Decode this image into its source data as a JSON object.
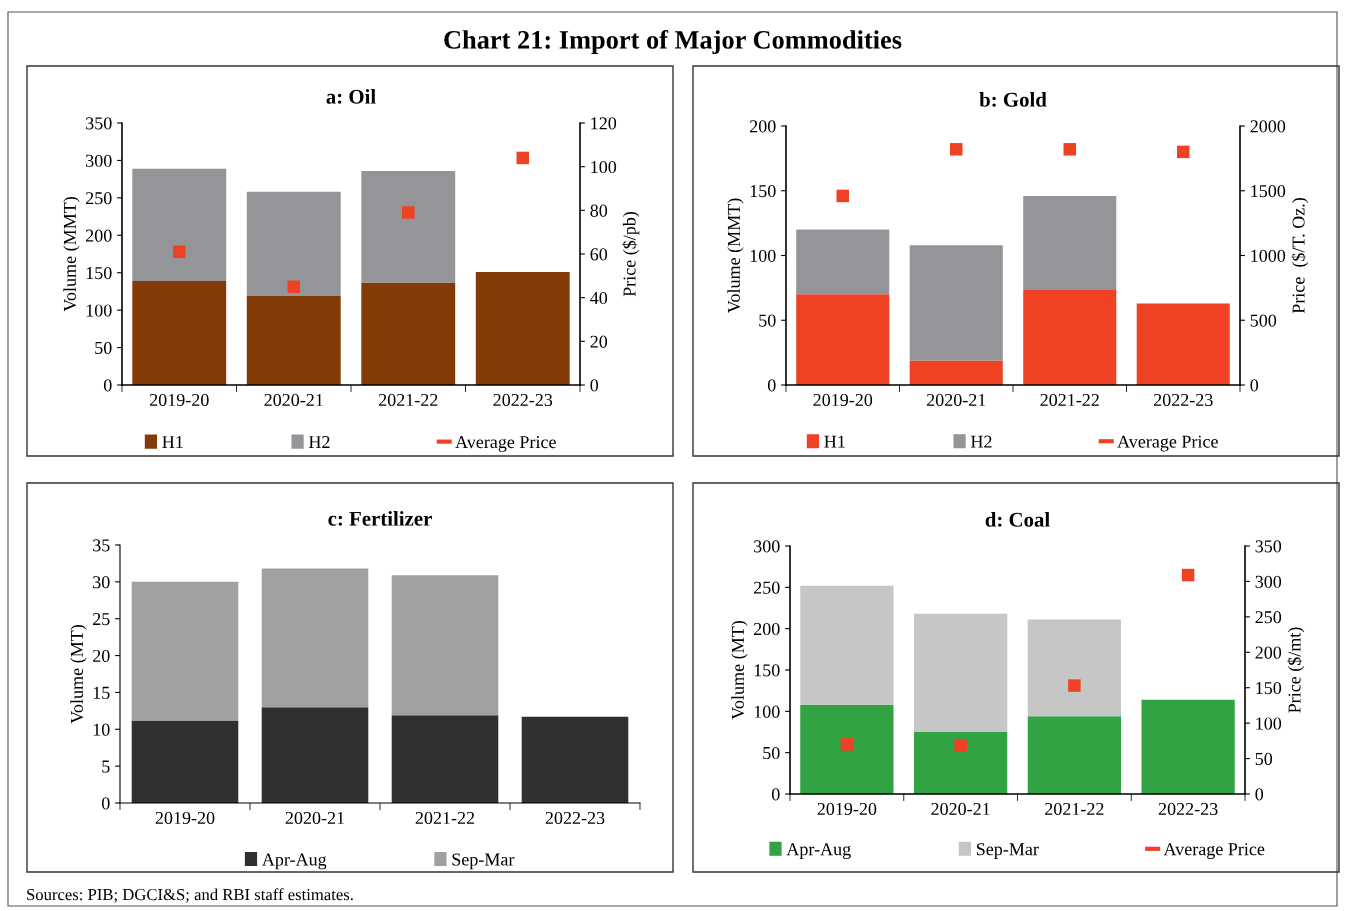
{
  "chart_data": [
    {
      "type": "other",
      "title": "Chart 21: Import of Major Commodities",
      "annotations": [
        "Sources: PIB; DGCI&S; and RBI staff estimates."
      ]
    },
    {
      "type": "bar",
      "title": "a: Oil",
      "categories": [
        "2019-20",
        "2020-21",
        "2021-22",
        "2022-23"
      ],
      "stacked": true,
      "legend": "bottom",
      "grid": false,
      "ylabel": "Volume (MMT)",
      "ylim": [
        0,
        350
      ],
      "yticks": [
        0,
        50,
        100,
        150,
        200,
        250,
        300,
        350
      ],
      "y2label": "Price ($/pb)",
      "y2lim": [
        0,
        120
      ],
      "y2ticks": [
        0,
        20,
        40,
        60,
        80,
        100,
        120
      ],
      "series": [
        {
          "name": "H1",
          "color": "#843a06",
          "values": [
            139,
            119,
            137,
            151
          ]
        },
        {
          "name": "H2",
          "color": "#939598",
          "values": [
            150,
            139,
            149,
            null
          ]
        },
        {
          "name": "Average Price",
          "type": "scatter",
          "marker": "square",
          "axis": "y2",
          "color": "#ef4123",
          "values": [
            61,
            45,
            79,
            104
          ]
        }
      ]
    },
    {
      "type": "bar",
      "title": "b: Gold",
      "categories": [
        "2019-20",
        "2020-21",
        "2021-22",
        "2022-23"
      ],
      "stacked": true,
      "legend": "bottom",
      "grid": false,
      "ylabel": "Volume (MMT)",
      "ylim": [
        0,
        200
      ],
      "yticks": [
        0,
        50,
        100,
        150,
        200
      ],
      "y2label": "Price  ($/T. Oz.)",
      "y2lim": [
        0,
        2000
      ],
      "y2ticks": [
        0,
        500,
        1000,
        1500,
        2000
      ],
      "series": [
        {
          "name": "H1",
          "color": "#ef4123",
          "values": [
            70,
            19,
            74,
            63
          ]
        },
        {
          "name": "H2",
          "color": "#939598",
          "values": [
            50,
            89,
            72,
            null
          ]
        },
        {
          "name": "Average Price",
          "type": "scatter",
          "marker": "square",
          "axis": "y2",
          "color": "#ef4123",
          "values": [
            1460,
            1820,
            1820,
            1800
          ]
        }
      ]
    },
    {
      "type": "bar",
      "title": "c: Fertilizer",
      "categories": [
        "2019-20",
        "2020-21",
        "2021-22",
        "2022-23"
      ],
      "stacked": true,
      "legend": "bottom",
      "grid": false,
      "ylabel": "Volume (MT)",
      "ylim": [
        0,
        35
      ],
      "yticks": [
        0,
        5,
        10,
        15,
        20,
        25,
        30,
        35
      ],
      "series": [
        {
          "name": "Apr-Aug",
          "color": "#312f30",
          "values": [
            11.2,
            13.0,
            11.9,
            11.7
          ]
        },
        {
          "name": "Sep-Mar",
          "color": "#a1a1a1",
          "values": [
            18.8,
            18.8,
            19.0,
            null
          ]
        }
      ]
    },
    {
      "type": "bar",
      "title": "d: Coal",
      "categories": [
        "2019-20",
        "2020-21",
        "2021-22",
        "2022-23"
      ],
      "stacked": true,
      "legend": "bottom",
      "grid": false,
      "ylabel": "Volume (MT)",
      "ylim": [
        0,
        300
      ],
      "yticks": [
        0,
        50,
        100,
        150,
        200,
        250,
        300
      ],
      "y2label": "Price ($/mt)",
      "y2lim": [
        0,
        350
      ],
      "y2ticks": [
        0,
        50,
        100,
        150,
        200,
        250,
        300,
        350
      ],
      "series": [
        {
          "name": "Apr-Aug",
          "color": "#31a343",
          "values": [
            108,
            75,
            94,
            114
          ]
        },
        {
          "name": "Sep-Mar",
          "color": "#c6c6c6",
          "values": [
            144,
            143,
            117,
            null
          ]
        },
        {
          "name": "Average Price",
          "type": "scatter",
          "marker": "square",
          "axis": "y2",
          "color": "#ef4123",
          "values": [
            70,
            68,
            153,
            309
          ]
        }
      ]
    }
  ]
}
